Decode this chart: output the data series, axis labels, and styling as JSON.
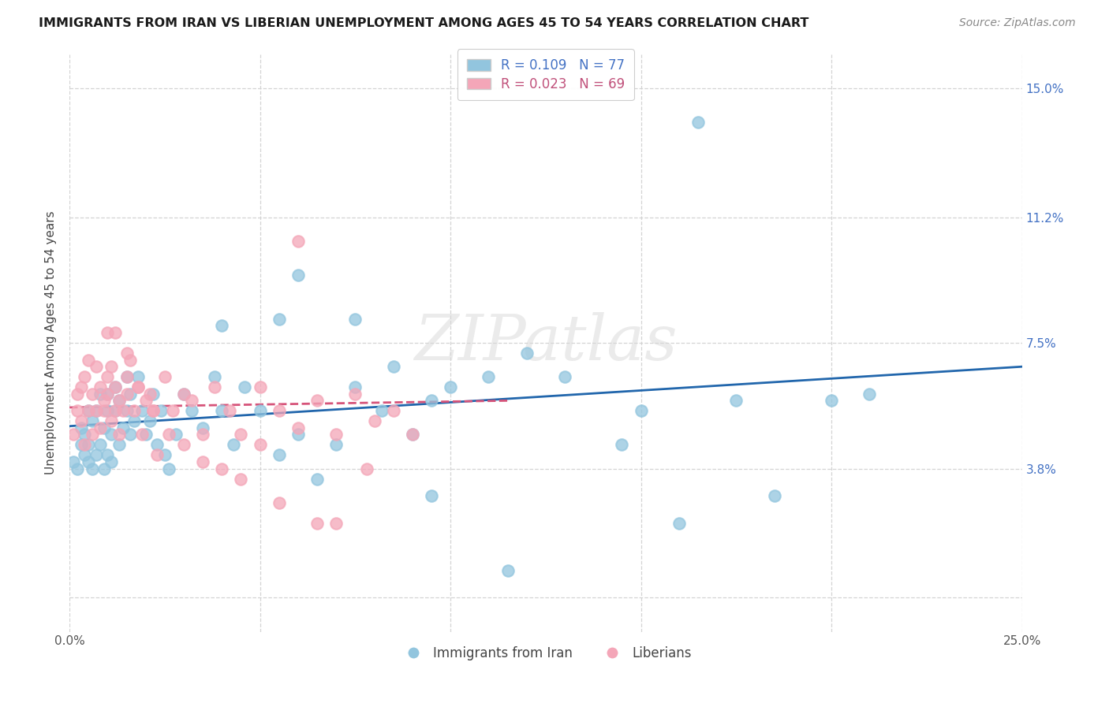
{
  "title": "IMMIGRANTS FROM IRAN VS LIBERIAN UNEMPLOYMENT AMONG AGES 45 TO 54 YEARS CORRELATION CHART",
  "source": "Source: ZipAtlas.com",
  "ylabel": "Unemployment Among Ages 45 to 54 years",
  "xlim": [
    0.0,
    0.25
  ],
  "ylim": [
    -0.01,
    0.16
  ],
  "ytick_positions": [
    0.0,
    0.038,
    0.075,
    0.112,
    0.15
  ],
  "ytick_labels": [
    "",
    "3.8%",
    "7.5%",
    "11.2%",
    "15.0%"
  ],
  "xtick_positions": [
    0.0,
    0.05,
    0.1,
    0.15,
    0.2,
    0.25
  ],
  "xtick_labels": [
    "0.0%",
    "",
    "",
    "",
    "",
    "25.0%"
  ],
  "iran_R": 0.109,
  "iran_N": 77,
  "liberia_R": 0.023,
  "liberia_N": 69,
  "iran_color": "#92c5de",
  "liberia_color": "#f4a6b8",
  "iran_line_color": "#2166ac",
  "liberia_line_color": "#d6547a",
  "iran_scatter_x": [
    0.001,
    0.002,
    0.003,
    0.003,
    0.004,
    0.004,
    0.005,
    0.005,
    0.005,
    0.006,
    0.006,
    0.007,
    0.007,
    0.008,
    0.008,
    0.009,
    0.009,
    0.01,
    0.01,
    0.01,
    0.011,
    0.011,
    0.012,
    0.012,
    0.013,
    0.013,
    0.014,
    0.015,
    0.015,
    0.016,
    0.016,
    0.017,
    0.018,
    0.019,
    0.02,
    0.021,
    0.022,
    0.023,
    0.024,
    0.025,
    0.026,
    0.028,
    0.03,
    0.032,
    0.035,
    0.038,
    0.04,
    0.043,
    0.046,
    0.05,
    0.055,
    0.06,
    0.065,
    0.07,
    0.075,
    0.082,
    0.09,
    0.095,
    0.1,
    0.11,
    0.12,
    0.13,
    0.15,
    0.16,
    0.175,
    0.185,
    0.2,
    0.21,
    0.04,
    0.055,
    0.06,
    0.075,
    0.085,
    0.095,
    0.115,
    0.145,
    0.165
  ],
  "iran_scatter_y": [
    0.04,
    0.038,
    0.045,
    0.05,
    0.042,
    0.048,
    0.04,
    0.045,
    0.055,
    0.038,
    0.052,
    0.042,
    0.055,
    0.045,
    0.06,
    0.038,
    0.05,
    0.042,
    0.055,
    0.06,
    0.04,
    0.048,
    0.055,
    0.062,
    0.045,
    0.058,
    0.05,
    0.055,
    0.065,
    0.048,
    0.06,
    0.052,
    0.065,
    0.055,
    0.048,
    0.052,
    0.06,
    0.045,
    0.055,
    0.042,
    0.038,
    0.048,
    0.06,
    0.055,
    0.05,
    0.065,
    0.055,
    0.045,
    0.062,
    0.055,
    0.042,
    0.048,
    0.035,
    0.045,
    0.062,
    0.055,
    0.048,
    0.03,
    0.062,
    0.065,
    0.072,
    0.065,
    0.055,
    0.022,
    0.058,
    0.03,
    0.058,
    0.06,
    0.08,
    0.082,
    0.095,
    0.082,
    0.068,
    0.058,
    0.008,
    0.045,
    0.14
  ],
  "liberia_scatter_x": [
    0.001,
    0.002,
    0.002,
    0.003,
    0.003,
    0.004,
    0.004,
    0.005,
    0.005,
    0.006,
    0.006,
    0.007,
    0.007,
    0.008,
    0.008,
    0.009,
    0.009,
    0.01,
    0.01,
    0.011,
    0.011,
    0.012,
    0.012,
    0.013,
    0.013,
    0.014,
    0.015,
    0.015,
    0.016,
    0.017,
    0.018,
    0.019,
    0.02,
    0.021,
    0.022,
    0.023,
    0.025,
    0.027,
    0.03,
    0.032,
    0.035,
    0.038,
    0.042,
    0.045,
    0.05,
    0.055,
    0.06,
    0.065,
    0.07,
    0.075,
    0.08,
    0.085,
    0.09,
    0.01,
    0.012,
    0.015,
    0.018,
    0.022,
    0.026,
    0.03,
    0.035,
    0.04,
    0.045,
    0.05,
    0.055,
    0.06,
    0.065,
    0.07,
    0.078
  ],
  "liberia_scatter_y": [
    0.048,
    0.055,
    0.06,
    0.052,
    0.062,
    0.045,
    0.065,
    0.055,
    0.07,
    0.048,
    0.06,
    0.055,
    0.068,
    0.05,
    0.062,
    0.055,
    0.058,
    0.06,
    0.065,
    0.052,
    0.068,
    0.055,
    0.062,
    0.048,
    0.058,
    0.055,
    0.065,
    0.06,
    0.07,
    0.055,
    0.062,
    0.048,
    0.058,
    0.06,
    0.055,
    0.042,
    0.065,
    0.055,
    0.06,
    0.058,
    0.048,
    0.062,
    0.055,
    0.048,
    0.062,
    0.055,
    0.05,
    0.058,
    0.048,
    0.06,
    0.052,
    0.055,
    0.048,
    0.078,
    0.078,
    0.072,
    0.062,
    0.055,
    0.048,
    0.045,
    0.04,
    0.038,
    0.035,
    0.045,
    0.028,
    0.105,
    0.022,
    0.022,
    0.038
  ],
  "iran_line_x": [
    0.0,
    0.25
  ],
  "iran_line_y": [
    0.0505,
    0.068
  ],
  "liberia_line_x": [
    0.0,
    0.115
  ],
  "liberia_line_y": [
    0.056,
    0.058
  ],
  "watermark": "ZIPatlas",
  "background_color": "#ffffff",
  "grid_color": "#d0d0d0"
}
